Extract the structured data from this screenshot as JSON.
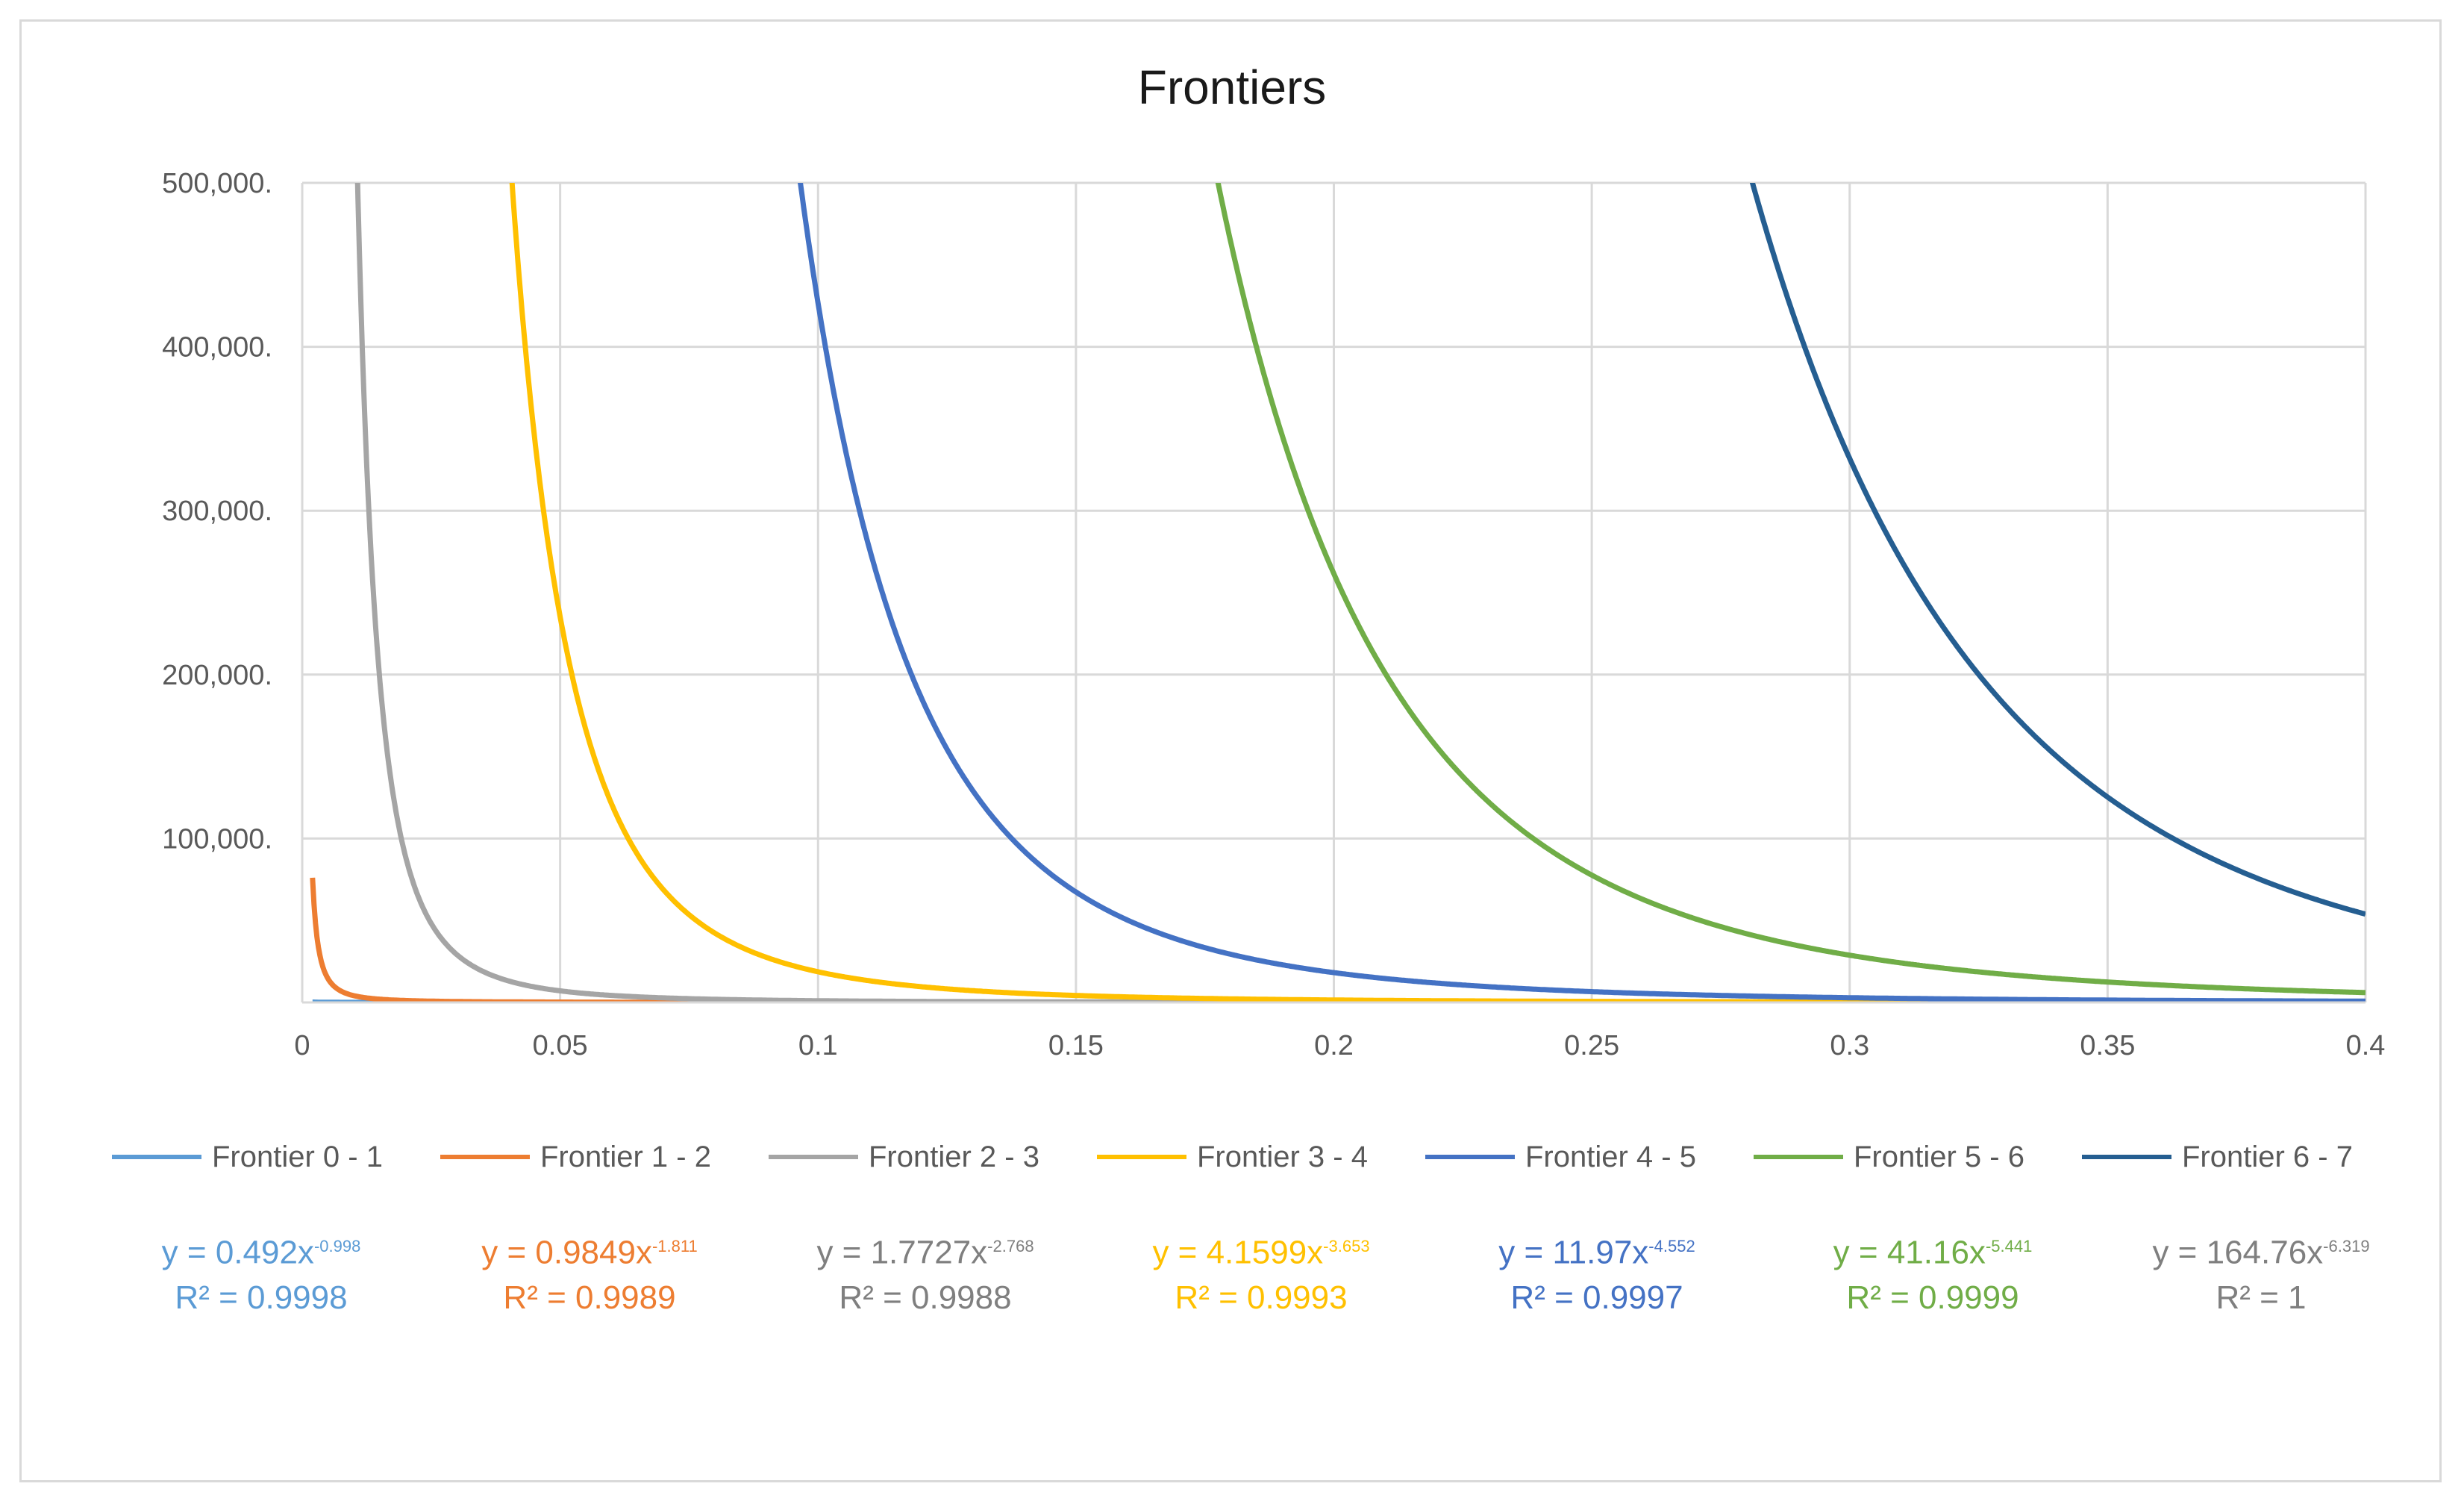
{
  "chart_data": {
    "type": "line",
    "title": "Frontiers",
    "xlabel": "",
    "ylabel": "",
    "xlim": [
      0,
      0.4
    ],
    "ylim": [
      0,
      500000
    ],
    "grid": true,
    "legend_position": "bottom",
    "x_ticks": [
      "0",
      "0.05",
      "0.1",
      "0.15",
      "0.2",
      "0.25",
      "0.3",
      "0.35",
      "0.4"
    ],
    "y_ticks": [
      "",
      "100,000.",
      "200,000.",
      "300,000.",
      "400,000.",
      "500,000."
    ],
    "series": [
      {
        "name": "Frontier 0 - 1",
        "color": "#5b9bd5",
        "a": 0.492,
        "b": 0.998,
        "equation": "y = 0.492x",
        "exponent": "-0.998",
        "r2": "R² = 0.9998"
      },
      {
        "name": "Frontier 1 - 2",
        "color": "#ed7d31",
        "a": 0.9849,
        "b": 1.811,
        "equation": "y = 0.9849x",
        "exponent": "-1.811",
        "r2": "R² = 0.9989"
      },
      {
        "name": "Frontier 2 - 3",
        "color": "#a5a5a5",
        "a": 1.7727,
        "b": 2.768,
        "equation": "y = 1.7727x",
        "exponent": "-2.768",
        "r2": "R² = 0.9988"
      },
      {
        "name": "Frontier 3 - 4",
        "color": "#ffc000",
        "a": 4.1599,
        "b": 3.653,
        "equation": "y = 4.1599x",
        "exponent": "-3.653",
        "r2": "R² = 0.9993"
      },
      {
        "name": "Frontier 4 - 5",
        "color": "#4472c4",
        "a": 11.97,
        "b": 4.552,
        "equation": "y = 11.97x",
        "exponent": "-4.552",
        "r2": "R² = 0.9997"
      },
      {
        "name": "Frontier 5 - 6",
        "color": "#70ad47",
        "a": 41.16,
        "b": 5.441,
        "equation": "y = 41.16x",
        "exponent": "-5.441",
        "r2": "R² = 0.9999"
      },
      {
        "name": "Frontier 6 - 7",
        "color": "#255e91",
        "a": 164.76,
        "b": 6.319,
        "equation": "y = 164.76x",
        "exponent": "-6.319",
        "r2": "R² = 1"
      }
    ],
    "equation_colors": [
      "#5b9bd5",
      "#ed7d31",
      "#7f7f7f",
      "#ffc000",
      "#4472c4",
      "#70ad47",
      "#7f7f7f"
    ]
  }
}
